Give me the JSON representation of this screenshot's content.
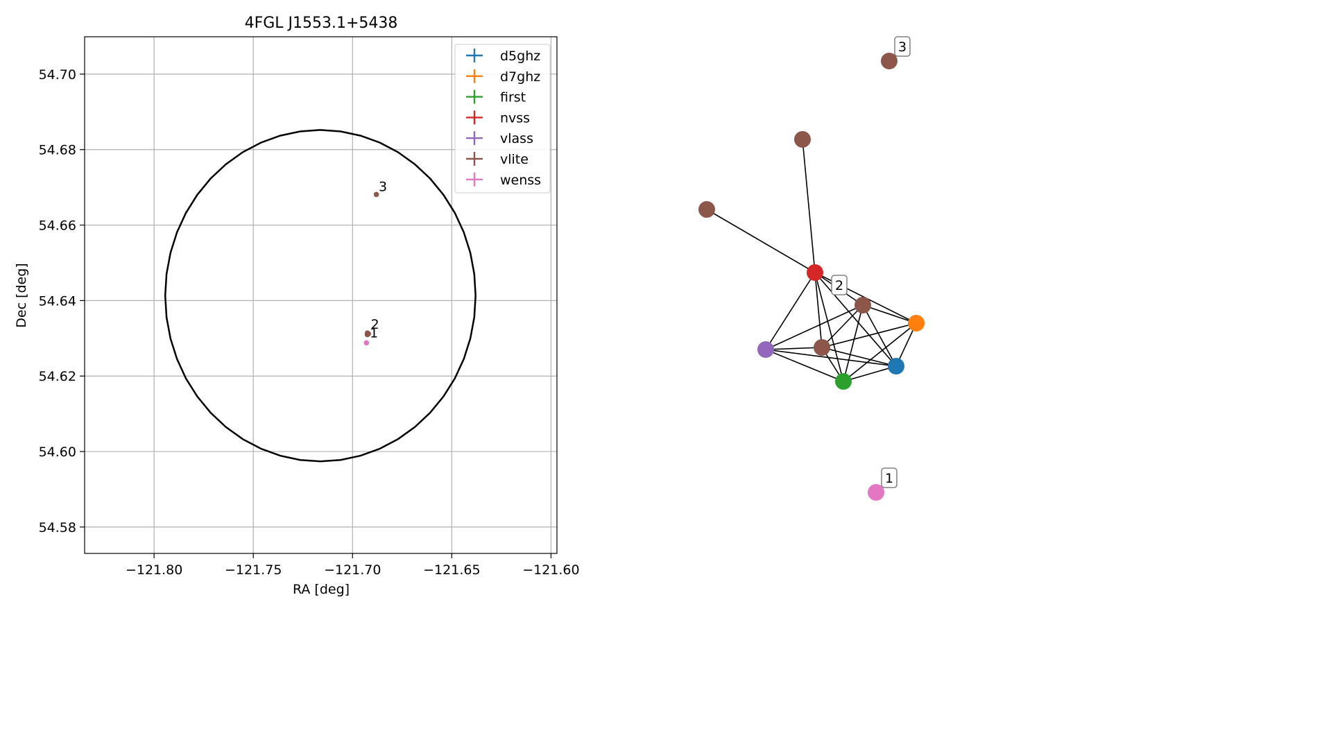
{
  "figure": {
    "title": "4FGL J1553.1+5438"
  },
  "chart_data": [
    {
      "type": "scatter",
      "title": "4FGL J1553.1+5438",
      "xlabel": "RA [deg]",
      "ylabel": "Dec [deg]",
      "xlim": [
        -121.835,
        -121.597
      ],
      "ylim": [
        54.573,
        54.7099
      ],
      "xticks": [
        -121.8,
        -121.75,
        -121.7,
        -121.65,
        -121.6
      ],
      "xtick_labels": [
        "−121.80",
        "−121.75",
        "−121.70",
        "−121.65",
        "−121.60"
      ],
      "yticks": [
        54.58,
        54.6,
        54.62,
        54.64,
        54.66,
        54.68,
        54.7
      ],
      "ytick_labels": [
        "54.58",
        "54.60",
        "54.62",
        "54.64",
        "54.66",
        "54.68",
        "54.70"
      ],
      "grid": true,
      "legend_position": "top-right",
      "ellipse": {
        "ra_center": -121.7162,
        "dec_center": 54.6413,
        "ra_halfwidth": 0.0782,
        "dec_halfwidth": 0.0439
      },
      "series": [
        {
          "name": "d5ghz",
          "color": "#1f77b4",
          "points": [
            [
              -121.6925,
              54.631
            ]
          ]
        },
        {
          "name": "d7ghz",
          "color": "#ff7f0e",
          "points": [
            [
              -121.6925,
              54.631
            ]
          ]
        },
        {
          "name": "first",
          "color": "#2ca02c",
          "points": [
            [
              -121.6925,
              54.631
            ]
          ]
        },
        {
          "name": "nvss",
          "color": "#d62728",
          "points": [
            [
              -121.6925,
              54.631
            ]
          ]
        },
        {
          "name": "vlass",
          "color": "#9467bd",
          "points": [
            [
              -121.6925,
              54.631
            ]
          ]
        },
        {
          "name": "vlite",
          "color": "#8c564b",
          "points": [
            [
              -121.6925,
              54.631
            ],
            [
              -121.6925,
              54.6314
            ],
            [
              -121.692,
              54.6312
            ],
            [
              -121.688,
              54.6681
            ]
          ]
        },
        {
          "name": "wenss",
          "color": "#e377c2",
          "points": [
            [
              -121.693,
              54.6288
            ]
          ]
        }
      ],
      "annotations": [
        {
          "text": "1",
          "ra": -121.692,
          "dec": 54.6295
        },
        {
          "text": "2",
          "ra": -121.6915,
          "dec": 54.6318
        },
        {
          "text": "3",
          "ra": -121.6875,
          "dec": 54.6683
        }
      ]
    },
    {
      "type": "network",
      "nodes": [
        {
          "id": "vlite_far",
          "color": "#8c564b",
          "pos": [
            1282,
            88
          ]
        },
        {
          "id": "vlite_a",
          "color": "#8c564b",
          "pos": [
            1157,
            201
          ]
        },
        {
          "id": "vlite_b",
          "color": "#8c564b",
          "pos": [
            1019,
            302
          ]
        },
        {
          "id": "nvss",
          "color": "#d62728",
          "pos": [
            1175,
            393
          ]
        },
        {
          "id": "vlite_c",
          "color": "#8c564b",
          "pos": [
            1244,
            440
          ]
        },
        {
          "id": "d7ghz",
          "color": "#ff7f0e",
          "pos": [
            1321,
            466
          ]
        },
        {
          "id": "vlass",
          "color": "#9467bd",
          "pos": [
            1104,
            504
          ]
        },
        {
          "id": "vlite_d",
          "color": "#8c564b",
          "pos": [
            1185,
            501
          ]
        },
        {
          "id": "d5ghz",
          "color": "#1f77b4",
          "pos": [
            1292,
            528
          ]
        },
        {
          "id": "first",
          "color": "#2ca02c",
          "pos": [
            1216,
            550
          ]
        },
        {
          "id": "wenss",
          "color": "#e377c2",
          "pos": [
            1263,
            710
          ]
        }
      ],
      "edges": [
        [
          "vlite_a",
          "nvss"
        ],
        [
          "vlite_b",
          "nvss"
        ],
        [
          "nvss",
          "vlite_c"
        ],
        [
          "nvss",
          "d7ghz"
        ],
        [
          "nvss",
          "vlass"
        ],
        [
          "nvss",
          "vlite_d"
        ],
        [
          "nvss",
          "d5ghz"
        ],
        [
          "nvss",
          "first"
        ],
        [
          "vlite_c",
          "d7ghz"
        ],
        [
          "vlite_c",
          "vlass"
        ],
        [
          "vlite_c",
          "vlite_d"
        ],
        [
          "vlite_c",
          "d5ghz"
        ],
        [
          "vlite_c",
          "first"
        ],
        [
          "d7ghz",
          "vlite_d"
        ],
        [
          "d7ghz",
          "d5ghz"
        ],
        [
          "d7ghz",
          "first"
        ],
        [
          "vlass",
          "vlite_d"
        ],
        [
          "vlass",
          "first"
        ],
        [
          "vlass",
          "d5ghz"
        ],
        [
          "vlite_d",
          "first"
        ],
        [
          "vlite_d",
          "d5ghz"
        ],
        [
          "first",
          "d5ghz"
        ]
      ],
      "labels": [
        {
          "text": "3",
          "pos": [
            1301,
            67
          ]
        },
        {
          "text": "2",
          "pos": [
            1210,
            411
          ]
        },
        {
          "text": "1",
          "pos": [
            1282,
            689
          ]
        }
      ]
    }
  ]
}
